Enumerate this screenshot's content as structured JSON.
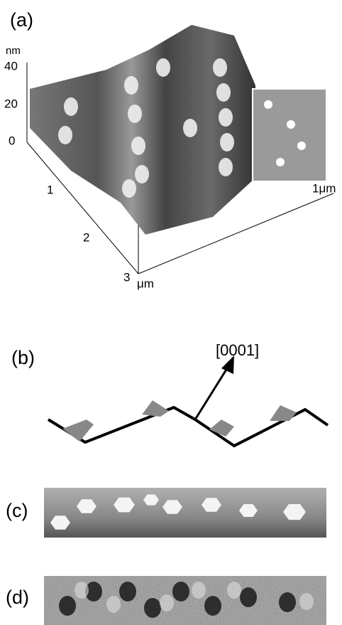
{
  "panel_a": {
    "label": "(a)",
    "z_unit": "nm",
    "z_ticks": [
      "40",
      "20",
      "0"
    ],
    "depth_ticks": [
      "1",
      "2",
      "3"
    ],
    "depth_unit": "μm",
    "inset_scale": "1μm"
  },
  "panel_b": {
    "label": "(b)",
    "direction": "[0001]"
  },
  "panel_c": {
    "label": "(c)"
  },
  "panel_d": {
    "label": "(d)"
  }
}
